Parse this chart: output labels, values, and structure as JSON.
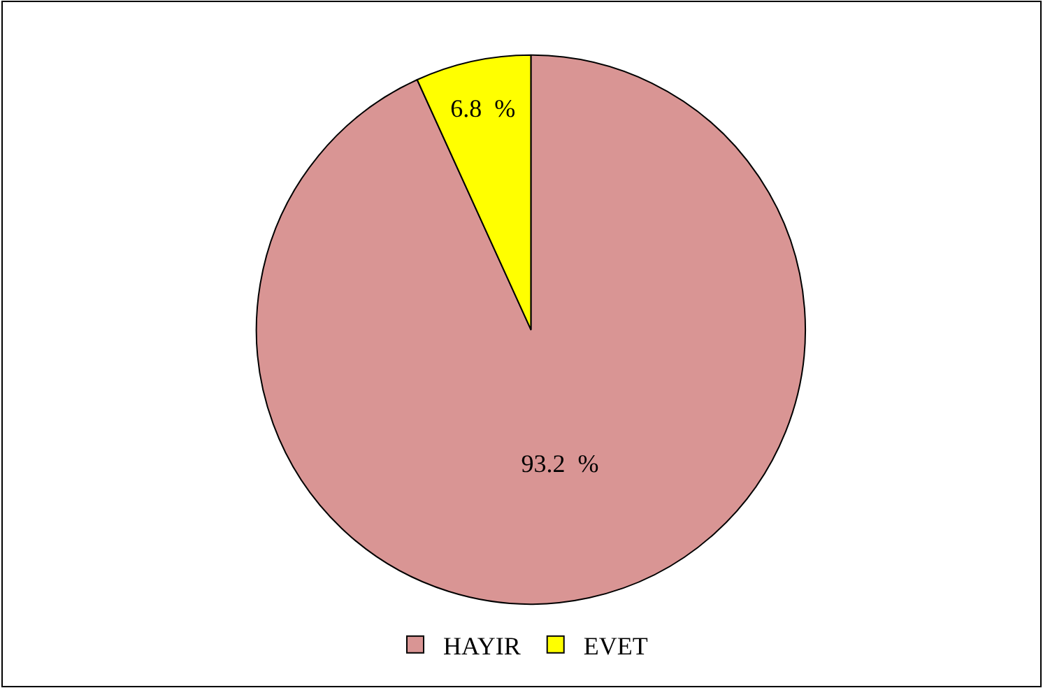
{
  "chart_data": {
    "type": "pie",
    "categories": [
      "HAYIR",
      "EVET"
    ],
    "values": [
      93.2,
      6.8
    ],
    "colors": [
      "#d99594",
      "#ffff00"
    ],
    "value_labels": [
      "93.2  %",
      "6.8  %"
    ],
    "legend": "bottom"
  }
}
